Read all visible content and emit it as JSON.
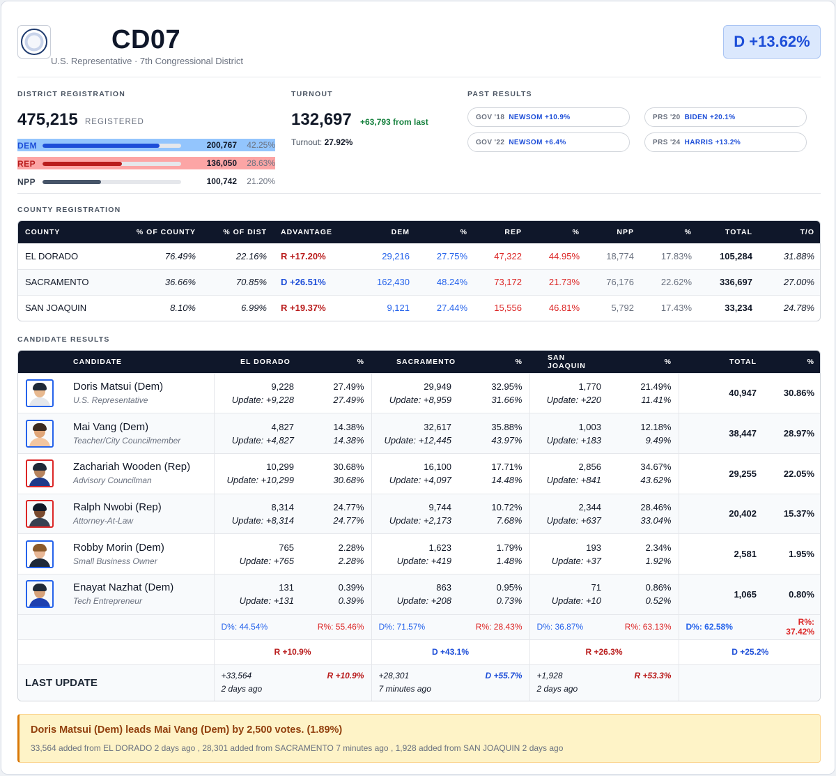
{
  "header": {
    "title": "CD07",
    "subtitle": "U.S. Representative · 7th Congressional District",
    "margin": "D +13.62%"
  },
  "registration": {
    "label": "DISTRICT REGISTRATION",
    "total": "475,215",
    "total_word": "REGISTERED",
    "parties": [
      {
        "label": "DEM",
        "count": "200,767",
        "pct": "42.25%",
        "share": 0.4225
      },
      {
        "label": "REP",
        "count": "136,050",
        "pct": "28.63%",
        "share": 0.2863
      },
      {
        "label": "NPP",
        "count": "100,742",
        "pct": "21.20%",
        "share": 0.212
      }
    ]
  },
  "turnout": {
    "label": "TURNOUT",
    "total": "132,697",
    "delta": "+63,793 from last",
    "pct_label": "Turnout:",
    "pct": "27.92%"
  },
  "past_results": {
    "label": "PAST RESULTS",
    "items": [
      {
        "key": "GOV '18",
        "value": "NEWSOM +10.9%"
      },
      {
        "key": "PRS '20",
        "value": "BIDEN +20.1%"
      },
      {
        "key": "GOV '22",
        "value": "NEWSOM +6.4%"
      },
      {
        "key": "PRS '24",
        "value": "HARRIS +13.2%"
      }
    ]
  },
  "county_registration": {
    "label": "COUNTY REGISTRATION",
    "headers": [
      "COUNTY",
      "% OF COUNTY",
      "% OF DIST",
      "ADVANTAGE",
      "DEM",
      "%",
      "REP",
      "%",
      "NPP",
      "%",
      "TOTAL",
      "T/O"
    ],
    "rows": [
      {
        "county": "EL DORADO",
        "pct_county": "76.49%",
        "pct_dist": "22.16%",
        "adv": "R +17.20%",
        "adv_party": "R",
        "dem": "29,216",
        "dem_pct": "27.75%",
        "rep": "47,322",
        "rep_pct": "44.95%",
        "npp": "18,774",
        "npp_pct": "17.83%",
        "total": "105,284",
        "to": "31.88%"
      },
      {
        "county": "SACRAMENTO",
        "pct_county": "36.66%",
        "pct_dist": "70.85%",
        "adv": "D +26.51%",
        "adv_party": "D",
        "dem": "162,430",
        "dem_pct": "48.24%",
        "rep": "73,172",
        "rep_pct": "21.73%",
        "npp": "76,176",
        "npp_pct": "22.62%",
        "total": "336,697",
        "to": "27.00%"
      },
      {
        "county": "SAN JOAQUIN",
        "pct_county": "8.10%",
        "pct_dist": "6.99%",
        "adv": "R +19.37%",
        "adv_party": "R",
        "dem": "9,121",
        "dem_pct": "27.44%",
        "rep": "15,556",
        "rep_pct": "46.81%",
        "npp": "5,792",
        "npp_pct": "17.43%",
        "total": "33,234",
        "to": "24.78%"
      }
    ]
  },
  "candidate_results": {
    "label": "CANDIDATE RESULTS",
    "headers": [
      "CANDIDATE",
      "EL DORADO",
      "%",
      "SACRAMENTO",
      "%",
      "SAN JOAQUIN",
      "%",
      "TOTAL",
      "%"
    ],
    "candidates": [
      {
        "name": "Doris Matsui (Dem)",
        "title": "U.S. Representative",
        "party": "D",
        "c1": "9,228",
        "c1u": "Update: +9,228",
        "c1p": "27.49%",
        "c1pu": "27.49%",
        "c2": "29,949",
        "c2u": "Update: +8,959",
        "c2p": "32.95%",
        "c2pu": "31.66%",
        "c3": "1,770",
        "c3u": "Update: +220",
        "c3p": "21.49%",
        "c3pu": "11.41%",
        "total": "40,947",
        "pct": "30.86%"
      },
      {
        "name": "Mai Vang (Dem)",
        "title": "Teacher/City Councilmember",
        "party": "D",
        "c1": "4,827",
        "c1u": "Update: +4,827",
        "c1p": "14.38%",
        "c1pu": "14.38%",
        "c2": "32,617",
        "c2u": "Update: +12,445",
        "c2p": "35.88%",
        "c2pu": "43.97%",
        "c3": "1,003",
        "c3u": "Update: +183",
        "c3p": "12.18%",
        "c3pu": "9.49%",
        "total": "38,447",
        "pct": "28.97%"
      },
      {
        "name": "Zachariah Wooden (Rep)",
        "title": "Advisory Councilman",
        "party": "R",
        "c1": "10,299",
        "c1u": "Update: +10,299",
        "c1p": "30.68%",
        "c1pu": "30.68%",
        "c2": "16,100",
        "c2u": "Update: +4,097",
        "c2p": "17.71%",
        "c2pu": "14.48%",
        "c3": "2,856",
        "c3u": "Update: +841",
        "c3p": "34.67%",
        "c3pu": "43.62%",
        "total": "29,255",
        "pct": "22.05%"
      },
      {
        "name": "Ralph Nwobi (Rep)",
        "title": "Attorney-At-Law",
        "party": "R",
        "c1": "8,314",
        "c1u": "Update: +8,314",
        "c1p": "24.77%",
        "c1pu": "24.77%",
        "c2": "9,744",
        "c2u": "Update: +2,173",
        "c2p": "10.72%",
        "c2pu": "7.68%",
        "c3": "2,344",
        "c3u": "Update: +637",
        "c3p": "28.46%",
        "c3pu": "33.04%",
        "total": "20,402",
        "pct": "15.37%"
      },
      {
        "name": "Robby Morin (Dem)",
        "title": "Small Business Owner",
        "party": "D",
        "c1": "765",
        "c1u": "Update: +765",
        "c1p": "2.28%",
        "c1pu": "2.28%",
        "c2": "1,623",
        "c2u": "Update: +419",
        "c2p": "1.79%",
        "c2pu": "1.48%",
        "c3": "193",
        "c3u": "Update: +37",
        "c3p": "2.34%",
        "c3pu": "1.92%",
        "total": "2,581",
        "pct": "1.95%"
      },
      {
        "name": "Enayat Nazhat (Dem)",
        "title": "Tech Entrepreneur",
        "party": "D",
        "c1": "131",
        "c1u": "Update: +131",
        "c1p": "0.39%",
        "c1pu": "0.39%",
        "c2": "863",
        "c2u": "Update: +208",
        "c2p": "0.95%",
        "c2pu": "0.73%",
        "c3": "71",
        "c3u": "Update: +10",
        "c3p": "0.86%",
        "c3pu": "0.52%",
        "total": "1,065",
        "pct": "0.80%"
      }
    ],
    "party_split": [
      {
        "d": "D%: 44.54%",
        "r": "R%: 55.46%"
      },
      {
        "d": "D%: 71.57%",
        "r": "R%: 28.43%"
      },
      {
        "d": "D%: 36.87%",
        "r": "R%: 63.13%"
      },
      {
        "d": "D%: 62.58%",
        "r": "R%: 37.42%"
      }
    ],
    "margins": [
      {
        "text": "R +10.9%",
        "party": "R"
      },
      {
        "text": "D +43.1%",
        "party": "D"
      },
      {
        "text": "R +26.3%",
        "party": "R"
      },
      {
        "text": "D +25.2%",
        "party": "D"
      }
    ],
    "last_update_label": "LAST UPDATE",
    "last_updates": [
      {
        "votes": "+33,564",
        "margin": "R +10.9%",
        "party": "R",
        "when": "2 days ago"
      },
      {
        "votes": "+28,301",
        "margin": "D +55.7%",
        "party": "D",
        "when": "7 minutes ago"
      },
      {
        "votes": "+1,928",
        "margin": "R +53.3%",
        "party": "R",
        "when": "2 days ago"
      }
    ]
  },
  "lead_banner": {
    "message": "Doris Matsui (Dem) leads Mai Vang (Dem) by 2,500 votes. (1.89%)",
    "details": "33,564 added from EL DORADO 2 days ago , 28,301 added from SACRAMENTO 7 minutes ago , 1,928 added from SAN JOAQUIN 2 days ago"
  },
  "colors": {
    "dem": "#2563eb",
    "rep": "#dc2626",
    "dem_highlight": "#93c5fd",
    "rep_highlight": "#fca5a5",
    "npp": "#475569",
    "header_bg": "#0f172a"
  }
}
